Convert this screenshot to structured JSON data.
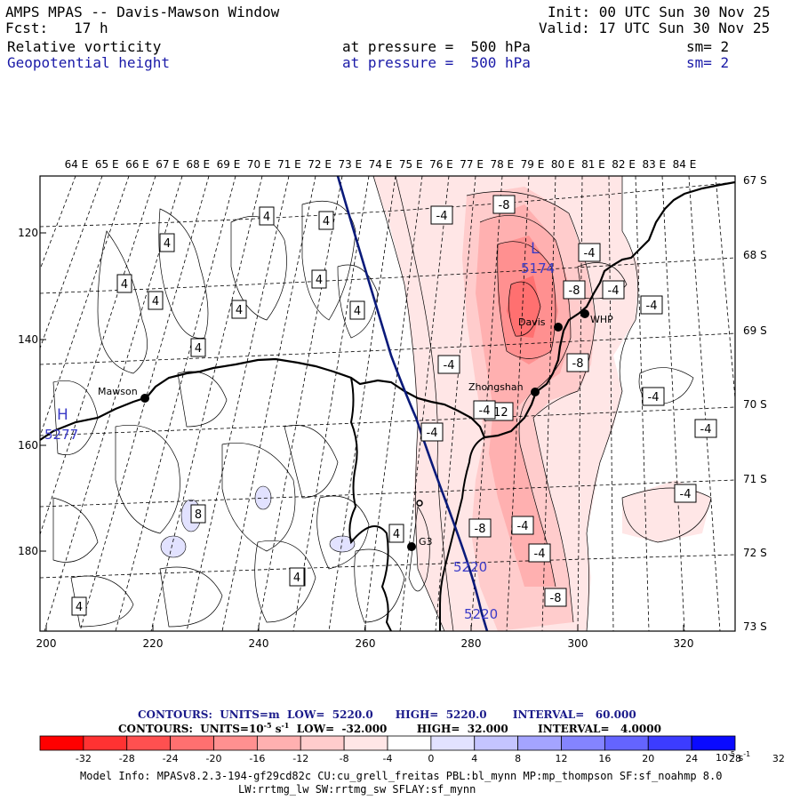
{
  "header": {
    "title": "AMPS MPAS -- Davis-Mawson Window",
    "forecast": "Fcst:   17 h",
    "init": "Init: 00 UTC Sun 30 Nov 25",
    "valid": "Valid: 17 UTC Sun 30 Nov 25",
    "field1_name": "Relative vorticity",
    "field1_level": "at pressure =  500 hPa",
    "field1_sm": "sm= 2",
    "field2_name": "Geopotential height",
    "field2_level": "at pressure =  500 hPa",
    "field2_sm": "sm= 2"
  },
  "map": {
    "top_lon_labels": [
      "64 E",
      "65 E",
      "66 E",
      "67 E",
      "68 E",
      "69 E",
      "70 E",
      "71 E",
      "72 E",
      "73 E",
      "74 E",
      "75 E",
      "76 E",
      "77 E",
      "78 E",
      "79 E",
      "80 E",
      "81 E",
      "82 E",
      "83 E",
      "84 E"
    ],
    "right_lat_labels": [
      "67 S",
      "68 S",
      "69 S",
      "70 S",
      "71 S",
      "72 S",
      "73 S"
    ],
    "left_y_ticks": [
      "120",
      "140",
      "160",
      "180"
    ],
    "bottom_x_ticks": [
      "200",
      "220",
      "240",
      "260",
      "280",
      "300",
      "320"
    ],
    "stations": [
      "Mawson",
      "Davis",
      "Zhongshan",
      "WHP",
      "G3"
    ],
    "highs_lows": [
      {
        "symbol": "H",
        "value": "5277"
      },
      {
        "symbol": "L",
        "value": "5174"
      }
    ],
    "height_contour_label": "5220",
    "vorticity_labels": [
      "4",
      "4",
      "4",
      "4",
      "4",
      "4",
      "4",
      "4",
      "4",
      "4",
      "4",
      "4",
      "4",
      "8",
      "-4",
      "-8",
      "-4",
      "-8",
      "-4",
      "-4",
      "-4",
      "-4",
      "-8",
      "-4",
      "-4",
      "-12",
      "-4",
      "-4",
      "-8",
      "-4",
      "-8",
      "-4"
    ]
  },
  "legend": {
    "contours_height": "CONTOURS:  UNITS=m  LOW=  5220.0      HIGH=  5220.0       INTERVAL=   60.000",
    "contours_vort_prefix": "CONTOURS:  UNITS=10",
    "contours_vort_exp": "-5",
    "contours_vort_suffix": " s",
    "contours_vort_exp2": "-1",
    "contours_vort_rest": "  LOW=  -32.000        HIGH=  32.000        INTERVAL=   4.0000",
    "colorbar_ticks": [
      "-32",
      "-28",
      "-24",
      "-20",
      "-16",
      "-12",
      "-8",
      "-4",
      "0",
      "4",
      "8",
      "12",
      "16",
      "20",
      "24",
      "28",
      "32"
    ],
    "colorbar_colors": [
      "#ff0000",
      "#ff3232",
      "#ff5050",
      "#ff7070",
      "#ff9090",
      "#ffb0b0",
      "#ffcccc",
      "#ffe6e6",
      "#ffffff",
      "#ffffff",
      "#e2e2ff",
      "#c4c4ff",
      "#a4a4ff",
      "#8484ff",
      "#6464ff",
      "#3c3cff",
      "#0a0aff"
    ],
    "units": "10",
    "units_exp": "-5",
    "units_s": " s",
    "units_exp2": "-1"
  },
  "footer": {
    "line1": "Model Info: MPASv8.2.3-194-gf29cd82c CU:cu_grell_freitas PBL:bl_mynn MP:mp_thompson SF:sf_noahmp 8.0",
    "line2": "LW:rrtmg_lw SW:rrtmg_sw SFLAY:sf_mynn"
  }
}
